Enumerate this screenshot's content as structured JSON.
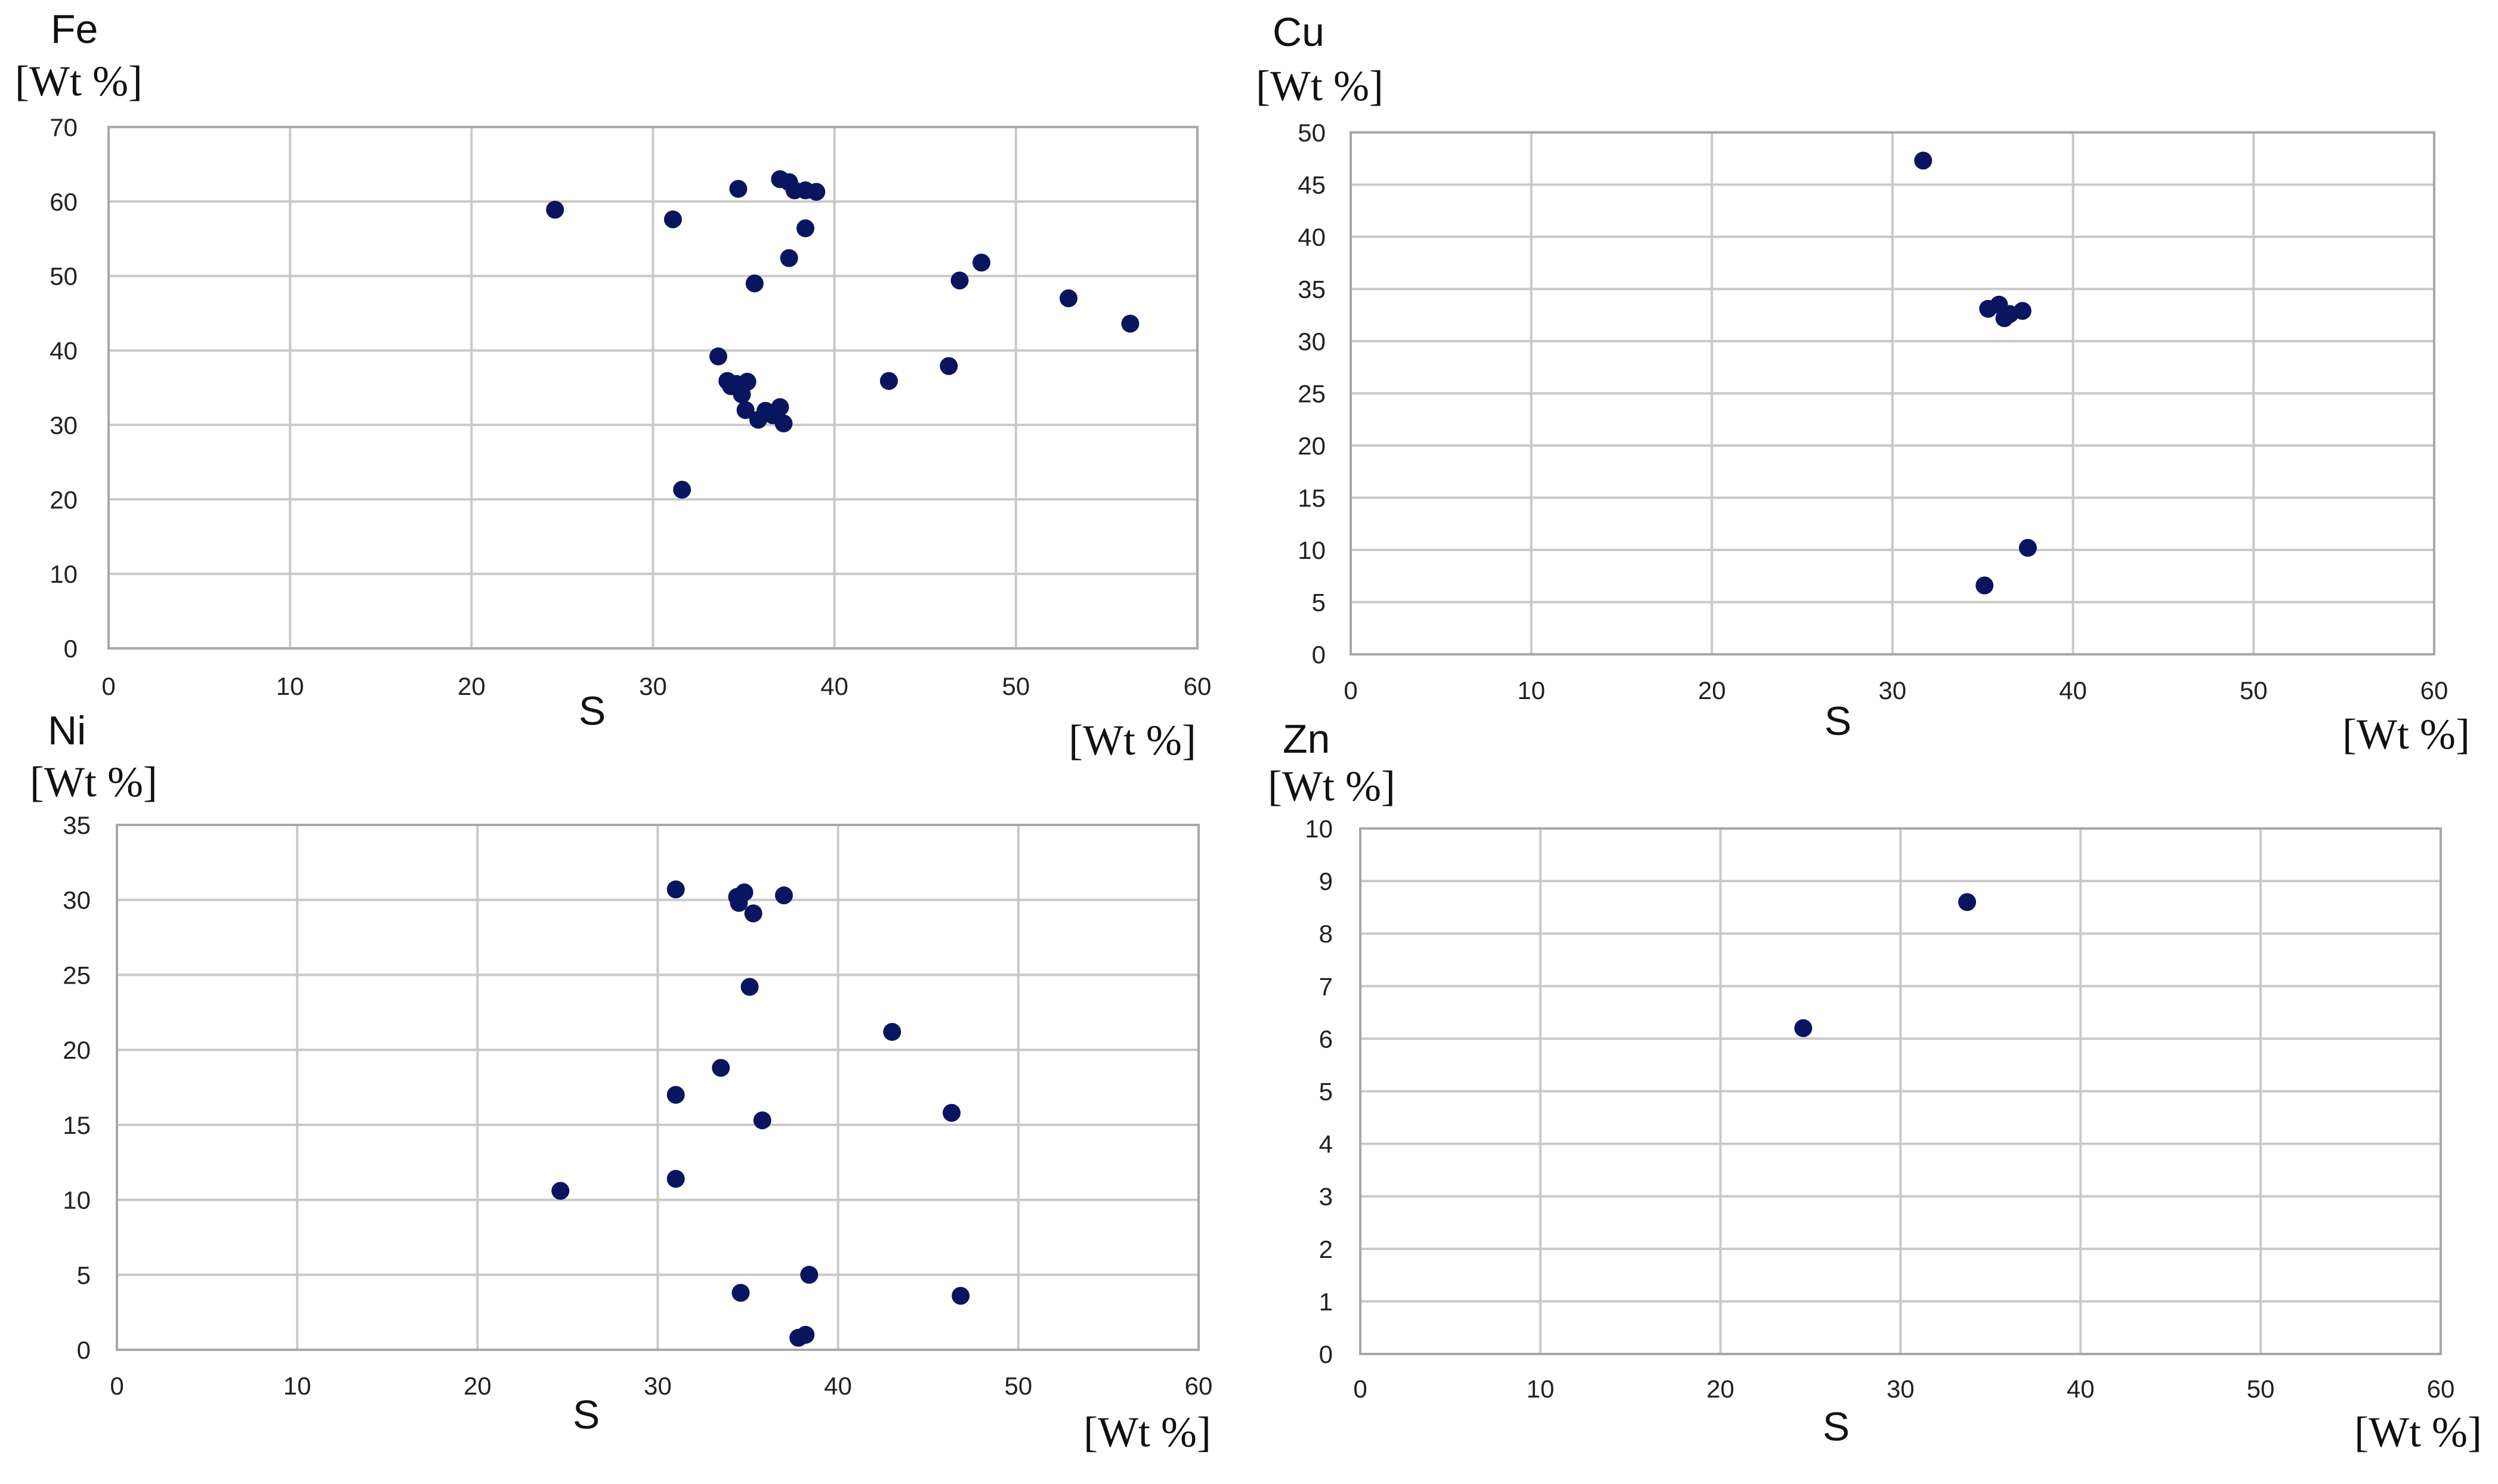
{
  "colors": {
    "marker": "#0a1560",
    "grid": "#c9c9c9",
    "frame": "#a8a8a8"
  },
  "chart_data": [
    {
      "type": "scatter",
      "ylabel": "Fe",
      "yunit": "[Wt %]",
      "xlabel": "S",
      "xunit": "[Wt %]",
      "xlim": [
        0,
        60
      ],
      "xticks": [
        0,
        10,
        20,
        30,
        40,
        50,
        60
      ],
      "ylim": [
        0,
        70
      ],
      "yticks": [
        0,
        10,
        20,
        30,
        40,
        50,
        60,
        70
      ],
      "grid": true,
      "points": [
        [
          24.6,
          58.9
        ],
        [
          31.1,
          57.6
        ],
        [
          31.6,
          21.3
        ],
        [
          34.7,
          61.7
        ],
        [
          37.0,
          63.0
        ],
        [
          37.5,
          62.6
        ],
        [
          37.8,
          61.5
        ],
        [
          38.4,
          61.5
        ],
        [
          39.0,
          61.3
        ],
        [
          38.4,
          56.4
        ],
        [
          37.5,
          52.4
        ],
        [
          35.6,
          49.0
        ],
        [
          46.9,
          49.4
        ],
        [
          48.1,
          51.8
        ],
        [
          52.9,
          47.0
        ],
        [
          56.3,
          43.6
        ],
        [
          33.6,
          39.2
        ],
        [
          34.1,
          35.9
        ],
        [
          34.3,
          35.2
        ],
        [
          34.6,
          35.5
        ],
        [
          35.2,
          35.8
        ],
        [
          34.9,
          34.1
        ],
        [
          35.1,
          32.0
        ],
        [
          35.8,
          30.7
        ],
        [
          36.2,
          31.9
        ],
        [
          36.6,
          31.3
        ],
        [
          37.0,
          32.4
        ],
        [
          37.2,
          30.2
        ],
        [
          43.0,
          35.9
        ],
        [
          46.3,
          37.9
        ]
      ]
    },
    {
      "type": "scatter",
      "ylabel": "Cu",
      "yunit": "[Wt %]",
      "xlabel": "S",
      "xunit": "[Wt %]",
      "xlim": [
        0,
        60
      ],
      "xticks": [
        0,
        10,
        20,
        30,
        40,
        50,
        60
      ],
      "ylim": [
        0,
        50
      ],
      "yticks": [
        0,
        5,
        10,
        15,
        20,
        25,
        30,
        35,
        40,
        45,
        50
      ],
      "grid": true,
      "points": [
        [
          31.7,
          47.3
        ],
        [
          35.3,
          33.1
        ],
        [
          35.9,
          33.5
        ],
        [
          36.2,
          32.2
        ],
        [
          36.5,
          32.6
        ],
        [
          37.2,
          32.9
        ],
        [
          37.5,
          10.2
        ],
        [
          35.1,
          6.6
        ]
      ]
    },
    {
      "type": "scatter",
      "ylabel": "Ni",
      "yunit": "[Wt %]",
      "xlabel": "S",
      "xunit": "[Wt %]",
      "xlim": [
        0,
        60
      ],
      "xticks": [
        0,
        10,
        20,
        30,
        40,
        50,
        60
      ],
      "ylim": [
        0,
        35
      ],
      "yticks": [
        0,
        5,
        10,
        15,
        20,
        25,
        30,
        35
      ],
      "grid": true,
      "points": [
        [
          31.0,
          30.7
        ],
        [
          34.4,
          30.2
        ],
        [
          34.8,
          30.5
        ],
        [
          34.5,
          29.8
        ],
        [
          35.3,
          29.1
        ],
        [
          37.0,
          30.3
        ],
        [
          35.1,
          24.2
        ],
        [
          43.0,
          21.2
        ],
        [
          33.5,
          18.8
        ],
        [
          31.0,
          17.0
        ],
        [
          35.8,
          15.3
        ],
        [
          46.3,
          15.8
        ],
        [
          24.6,
          10.6
        ],
        [
          31.0,
          11.4
        ],
        [
          38.4,
          5.0
        ],
        [
          34.6,
          3.8
        ],
        [
          46.8,
          3.6
        ],
        [
          37.8,
          0.8
        ],
        [
          38.2,
          1.0
        ]
      ]
    },
    {
      "type": "scatter",
      "ylabel": "Zn",
      "yunit": "[Wt %]",
      "xlabel": "S",
      "xunit": "[Wt %]",
      "xlim": [
        0,
        60
      ],
      "xticks": [
        0,
        10,
        20,
        30,
        40,
        50,
        60
      ],
      "ylim": [
        0,
        10
      ],
      "yticks": [
        0,
        1,
        2,
        3,
        4,
        5,
        6,
        7,
        8,
        9,
        10
      ],
      "grid": true,
      "points": [
        [
          33.7,
          8.6
        ],
        [
          24.6,
          6.2
        ]
      ]
    }
  ]
}
